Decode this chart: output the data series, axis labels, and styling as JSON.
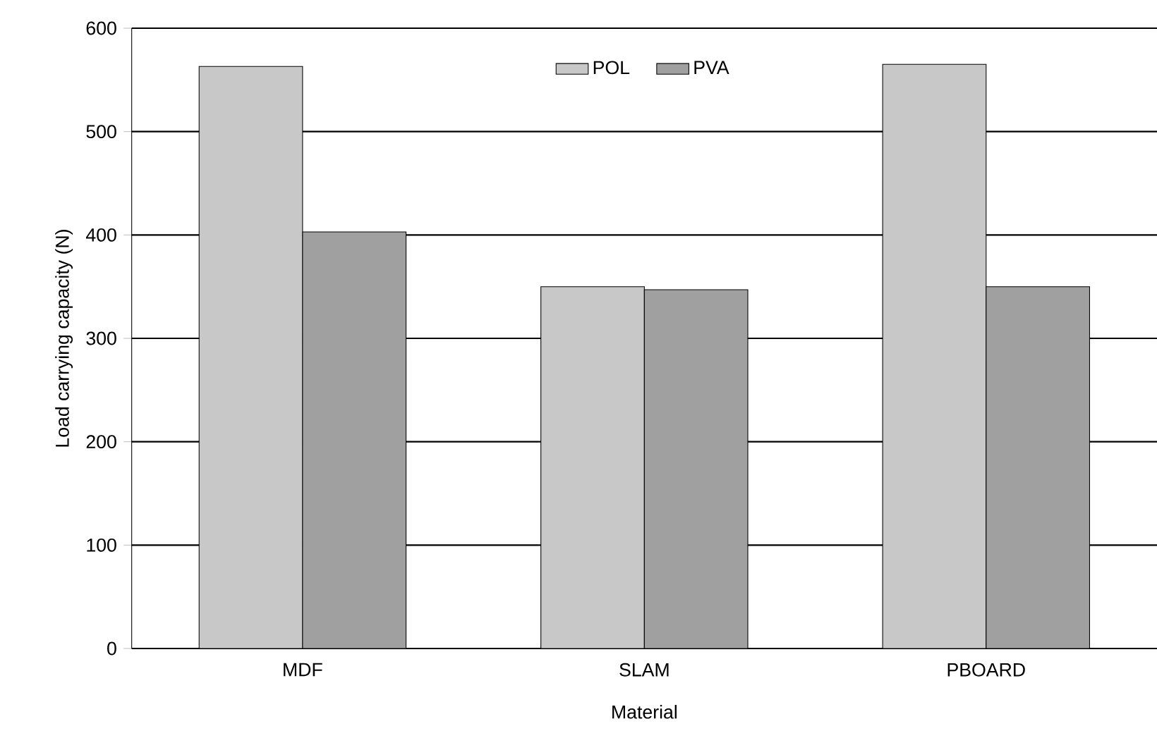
{
  "chart_data": {
    "type": "bar",
    "xlabel": "Material",
    "ylabel": "Load carrying capacity (N)",
    "categories": [
      "MDF",
      "SLAM",
      "PBOARD"
    ],
    "series": [
      {
        "name": "POL",
        "color": "#c8c8c8",
        "values": [
          563,
          350,
          565
        ]
      },
      {
        "name": "PVA",
        "color": "#a0a0a0",
        "values": [
          403,
          347,
          350
        ]
      }
    ],
    "ylim": [
      0,
      600
    ],
    "yticks": [
      0,
      100,
      200,
      300,
      400,
      500,
      600
    ],
    "grid": "y",
    "legend": "top"
  }
}
